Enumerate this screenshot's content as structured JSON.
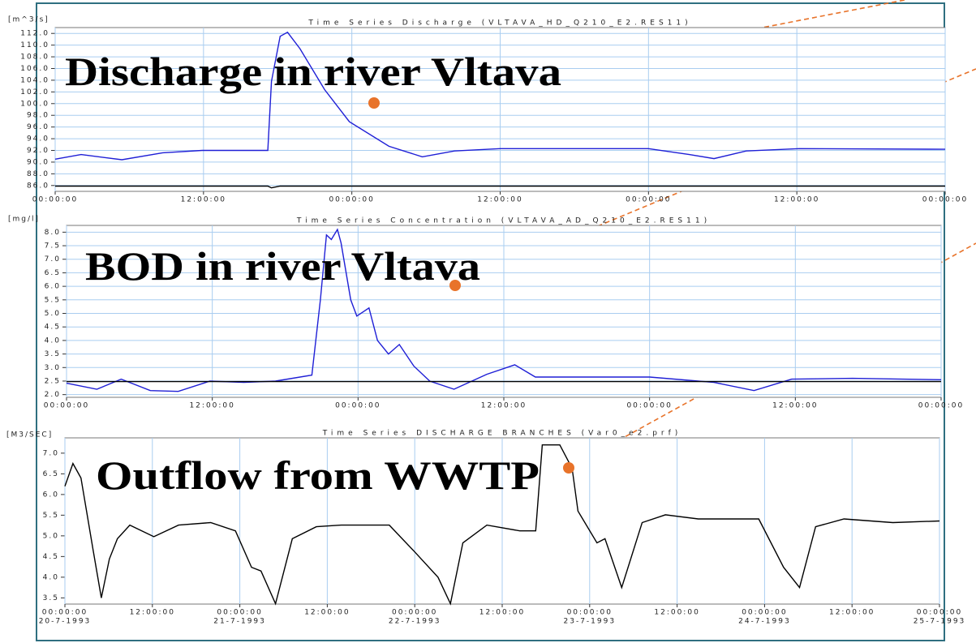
{
  "chart_data": [
    {
      "type": "line",
      "title": "Time Series Discharge (VLTAVA_HD_Q210_E2.RES11)",
      "y_label": "[m^3/s]",
      "annotation": "Discharge in river Vltava",
      "x": [
        0,
        2.1,
        5.4,
        8.7,
        11.9,
        17.2,
        17.5,
        18.2,
        18.8,
        19.8,
        21.8,
        23.8,
        27,
        29.7,
        32.3,
        36,
        48,
        51.3,
        53.3,
        55.9,
        60.2,
        72
      ],
      "series": [
        {
          "color": "#1f1fd6",
          "values": [
            90.5,
            91.3,
            90.4,
            91.6,
            92.0,
            92.0,
            103.8,
            111.5,
            112.2,
            109.4,
            102.4,
            96.9,
            92.7,
            90.9,
            91.9,
            92.3,
            92.3,
            91.3,
            90.6,
            91.9,
            92.3,
            92.2
          ]
        },
        {
          "color": "#000000",
          "values": [
            85.9,
            85.9,
            85.9,
            85.9,
            85.9,
            85.9,
            85.6,
            85.9,
            85.9,
            85.9,
            85.9,
            85.9,
            85.9,
            85.9,
            85.9,
            85.9,
            85.9,
            85.9,
            85.9,
            85.9,
            85.9,
            85.9
          ]
        }
      ],
      "xlim": [
        0,
        72
      ],
      "xticks": [
        {
          "value": 0,
          "label": "00:00:00"
        },
        {
          "value": 12,
          "label": "12:00:00"
        },
        {
          "value": 24,
          "label": "00:00:00"
        },
        {
          "value": 36,
          "label": "12:00:00"
        },
        {
          "value": 48,
          "label": "00:00:00"
        },
        {
          "value": 60,
          "label": "12:00:00"
        },
        {
          "value": 72,
          "label": "00:00:00"
        }
      ],
      "ylim": [
        85,
        113
      ],
      "yticks": [
        {
          "value": 86,
          "label": "86.0"
        },
        {
          "value": 88,
          "label": "88.0"
        },
        {
          "value": 90,
          "label": "90.0"
        },
        {
          "value": 92,
          "label": "92.0"
        },
        {
          "value": 94,
          "label": "94.0"
        },
        {
          "value": 96,
          "label": "96.0"
        },
        {
          "value": 98,
          "label": "98.0"
        },
        {
          "value": 100,
          "label": "100.0"
        },
        {
          "value": 102,
          "label": "102.0"
        },
        {
          "value": 104,
          "label": "104.0"
        },
        {
          "value": 106,
          "label": "106.0"
        },
        {
          "value": 108,
          "label": "108.0"
        },
        {
          "value": 110,
          "label": "110.0"
        },
        {
          "value": 112,
          "label": "112.0"
        }
      ],
      "grid": {
        "x": true,
        "y": true
      },
      "grid_color": "#a9cdf0"
    },
    {
      "type": "line",
      "title": "Time Series Concentration (VLTAVA_AD_Q210_E2.RES11)",
      "y_label": "[mg/l]",
      "annotation": "BOD in river Vltava",
      "x": [
        0,
        2.5,
        4.5,
        6.9,
        9.2,
        11.8,
        14.6,
        17.2,
        20.2,
        20.9,
        21.4,
        21.8,
        22.3,
        22.6,
        23.4,
        23.9,
        24.9,
        25.6,
        26.5,
        27.4,
        28.6,
        29.9,
        31.9,
        34.6,
        36.9,
        38.6,
        48,
        53.3,
        56.6,
        59.7,
        64.7,
        72
      ],
      "series": [
        {
          "color": "#1f1fd6",
          "values": [
            2.42,
            2.2,
            2.57,
            2.15,
            2.12,
            2.5,
            2.45,
            2.5,
            2.72,
            5.5,
            7.9,
            7.73,
            8.1,
            7.6,
            5.5,
            4.9,
            5.2,
            4.0,
            3.5,
            3.85,
            3.05,
            2.5,
            2.2,
            2.75,
            3.1,
            2.65,
            2.65,
            2.45,
            2.15,
            2.57,
            2.6,
            2.55
          ]
        },
        {
          "color": "#000000",
          "values": [
            2.48,
            2.48,
            2.48,
            2.48,
            2.48,
            2.48,
            2.48,
            2.48,
            2.48,
            2.48,
            2.48,
            2.48,
            2.48,
            2.48,
            2.48,
            2.48,
            2.48,
            2.48,
            2.48,
            2.48,
            2.48,
            2.48,
            2.48,
            2.48,
            2.48,
            2.48,
            2.48,
            2.48,
            2.48,
            2.48,
            2.48,
            2.48
          ]
        }
      ],
      "xlim": [
        0,
        72
      ],
      "xticks": [
        {
          "value": 0,
          "label": "00:00:00"
        },
        {
          "value": 12,
          "label": "12:00:00"
        },
        {
          "value": 24,
          "label": "00:00:00"
        },
        {
          "value": 36,
          "label": "12:00:00"
        },
        {
          "value": 48,
          "label": "00:00:00"
        },
        {
          "value": 60,
          "label": "12:00:00"
        },
        {
          "value": 72,
          "label": "00:00:00"
        }
      ],
      "ylim": [
        1.9,
        8.25
      ],
      "yticks": [
        {
          "value": 2,
          "label": "2.0"
        },
        2.5,
        {
          "value": 3,
          "label": "3.0"
        },
        3.5,
        {
          "value": 4,
          "label": "4.0"
        },
        4.5,
        {
          "value": 5,
          "label": "5.0"
        },
        5.5,
        {
          "value": 6,
          "label": "6.0"
        },
        6.5,
        {
          "value": 7,
          "label": "7.0"
        },
        7.5,
        {
          "value": 8,
          "label": "8.0"
        }
      ],
      "grid": {
        "x": true,
        "y": true
      },
      "grid_color": "#a9cdf0"
    },
    {
      "type": "line",
      "title": "Time Series DISCHARGE BRANCHES (Var0_e2.prf)",
      "y_label": "[M3/SEC]",
      "annotation": "Outflow from WWTP",
      "x": [
        0,
        1.1,
        2.2,
        3.9,
        5,
        6.1,
        7.2,
        8.9,
        12.2,
        15.6,
        20,
        23.4,
        25.6,
        26.9,
        28.9,
        31.2,
        34.5,
        37.9,
        44.5,
        47.9,
        51.2,
        52.9,
        54.6,
        57.9,
        62.4,
        64.6,
        65.5,
        67.9,
        69.6,
        70.4,
        73,
        74.1,
        76.4,
        79.2,
        82.4,
        86.9,
        95.2,
        98.6,
        100.8,
        103,
        106.9,
        113.6,
        120
      ],
      "series": [
        {
          "color": "#000000",
          "values": [
            6.2,
            6.75,
            6.4,
            4.63,
            3.5,
            4.44,
            4.93,
            5.26,
            4.98,
            5.26,
            5.32,
            5.12,
            4.24,
            4.15,
            3.36,
            4.93,
            5.22,
            5.26,
            5.26,
            4.63,
            4.0,
            3.36,
            4.83,
            5.26,
            5.12,
            5.12,
            7.2,
            7.2,
            6.63,
            5.6,
            4.83,
            4.93,
            3.75,
            5.32,
            5.51,
            5.41,
            5.41,
            4.24,
            3.75,
            5.22,
            5.41,
            5.32,
            5.36
          ]
        }
      ],
      "xlim": [
        0,
        120
      ],
      "xticks": [
        {
          "value": 0,
          "label": "00:00:00",
          "date": "20-7-1993"
        },
        {
          "value": 12,
          "label": "12:00:00"
        },
        {
          "value": 24,
          "label": "00:00:00",
          "date": "21-7-1993"
        },
        {
          "value": 36,
          "label": "12:00:00"
        },
        {
          "value": 48,
          "label": "00:00:00",
          "date": "22-7-1993"
        },
        {
          "value": 60,
          "label": "12:00:00"
        },
        {
          "value": 72,
          "label": "00:00:00",
          "date": "23-7-1993"
        },
        {
          "value": 84,
          "label": "12:00:00"
        },
        {
          "value": 96,
          "label": "00:00:00",
          "date": "24-7-1993"
        },
        {
          "value": 108,
          "label": "12:00:00"
        },
        {
          "value": 120,
          "label": "00:00:00",
          "date": "25-7-1993"
        }
      ],
      "ylim": [
        3.35,
        7.37
      ],
      "yticks": [
        3.5,
        {
          "value": 4,
          "label": "4.0"
        },
        4.5,
        {
          "value": 5,
          "label": "5.0"
        },
        5.5,
        {
          "value": 6,
          "label": "6.0"
        },
        6.5,
        {
          "value": 7,
          "label": "7.0"
        }
      ],
      "grid": {
        "x": true,
        "y": false
      },
      "grid_color": "#a9cdf0"
    }
  ]
}
